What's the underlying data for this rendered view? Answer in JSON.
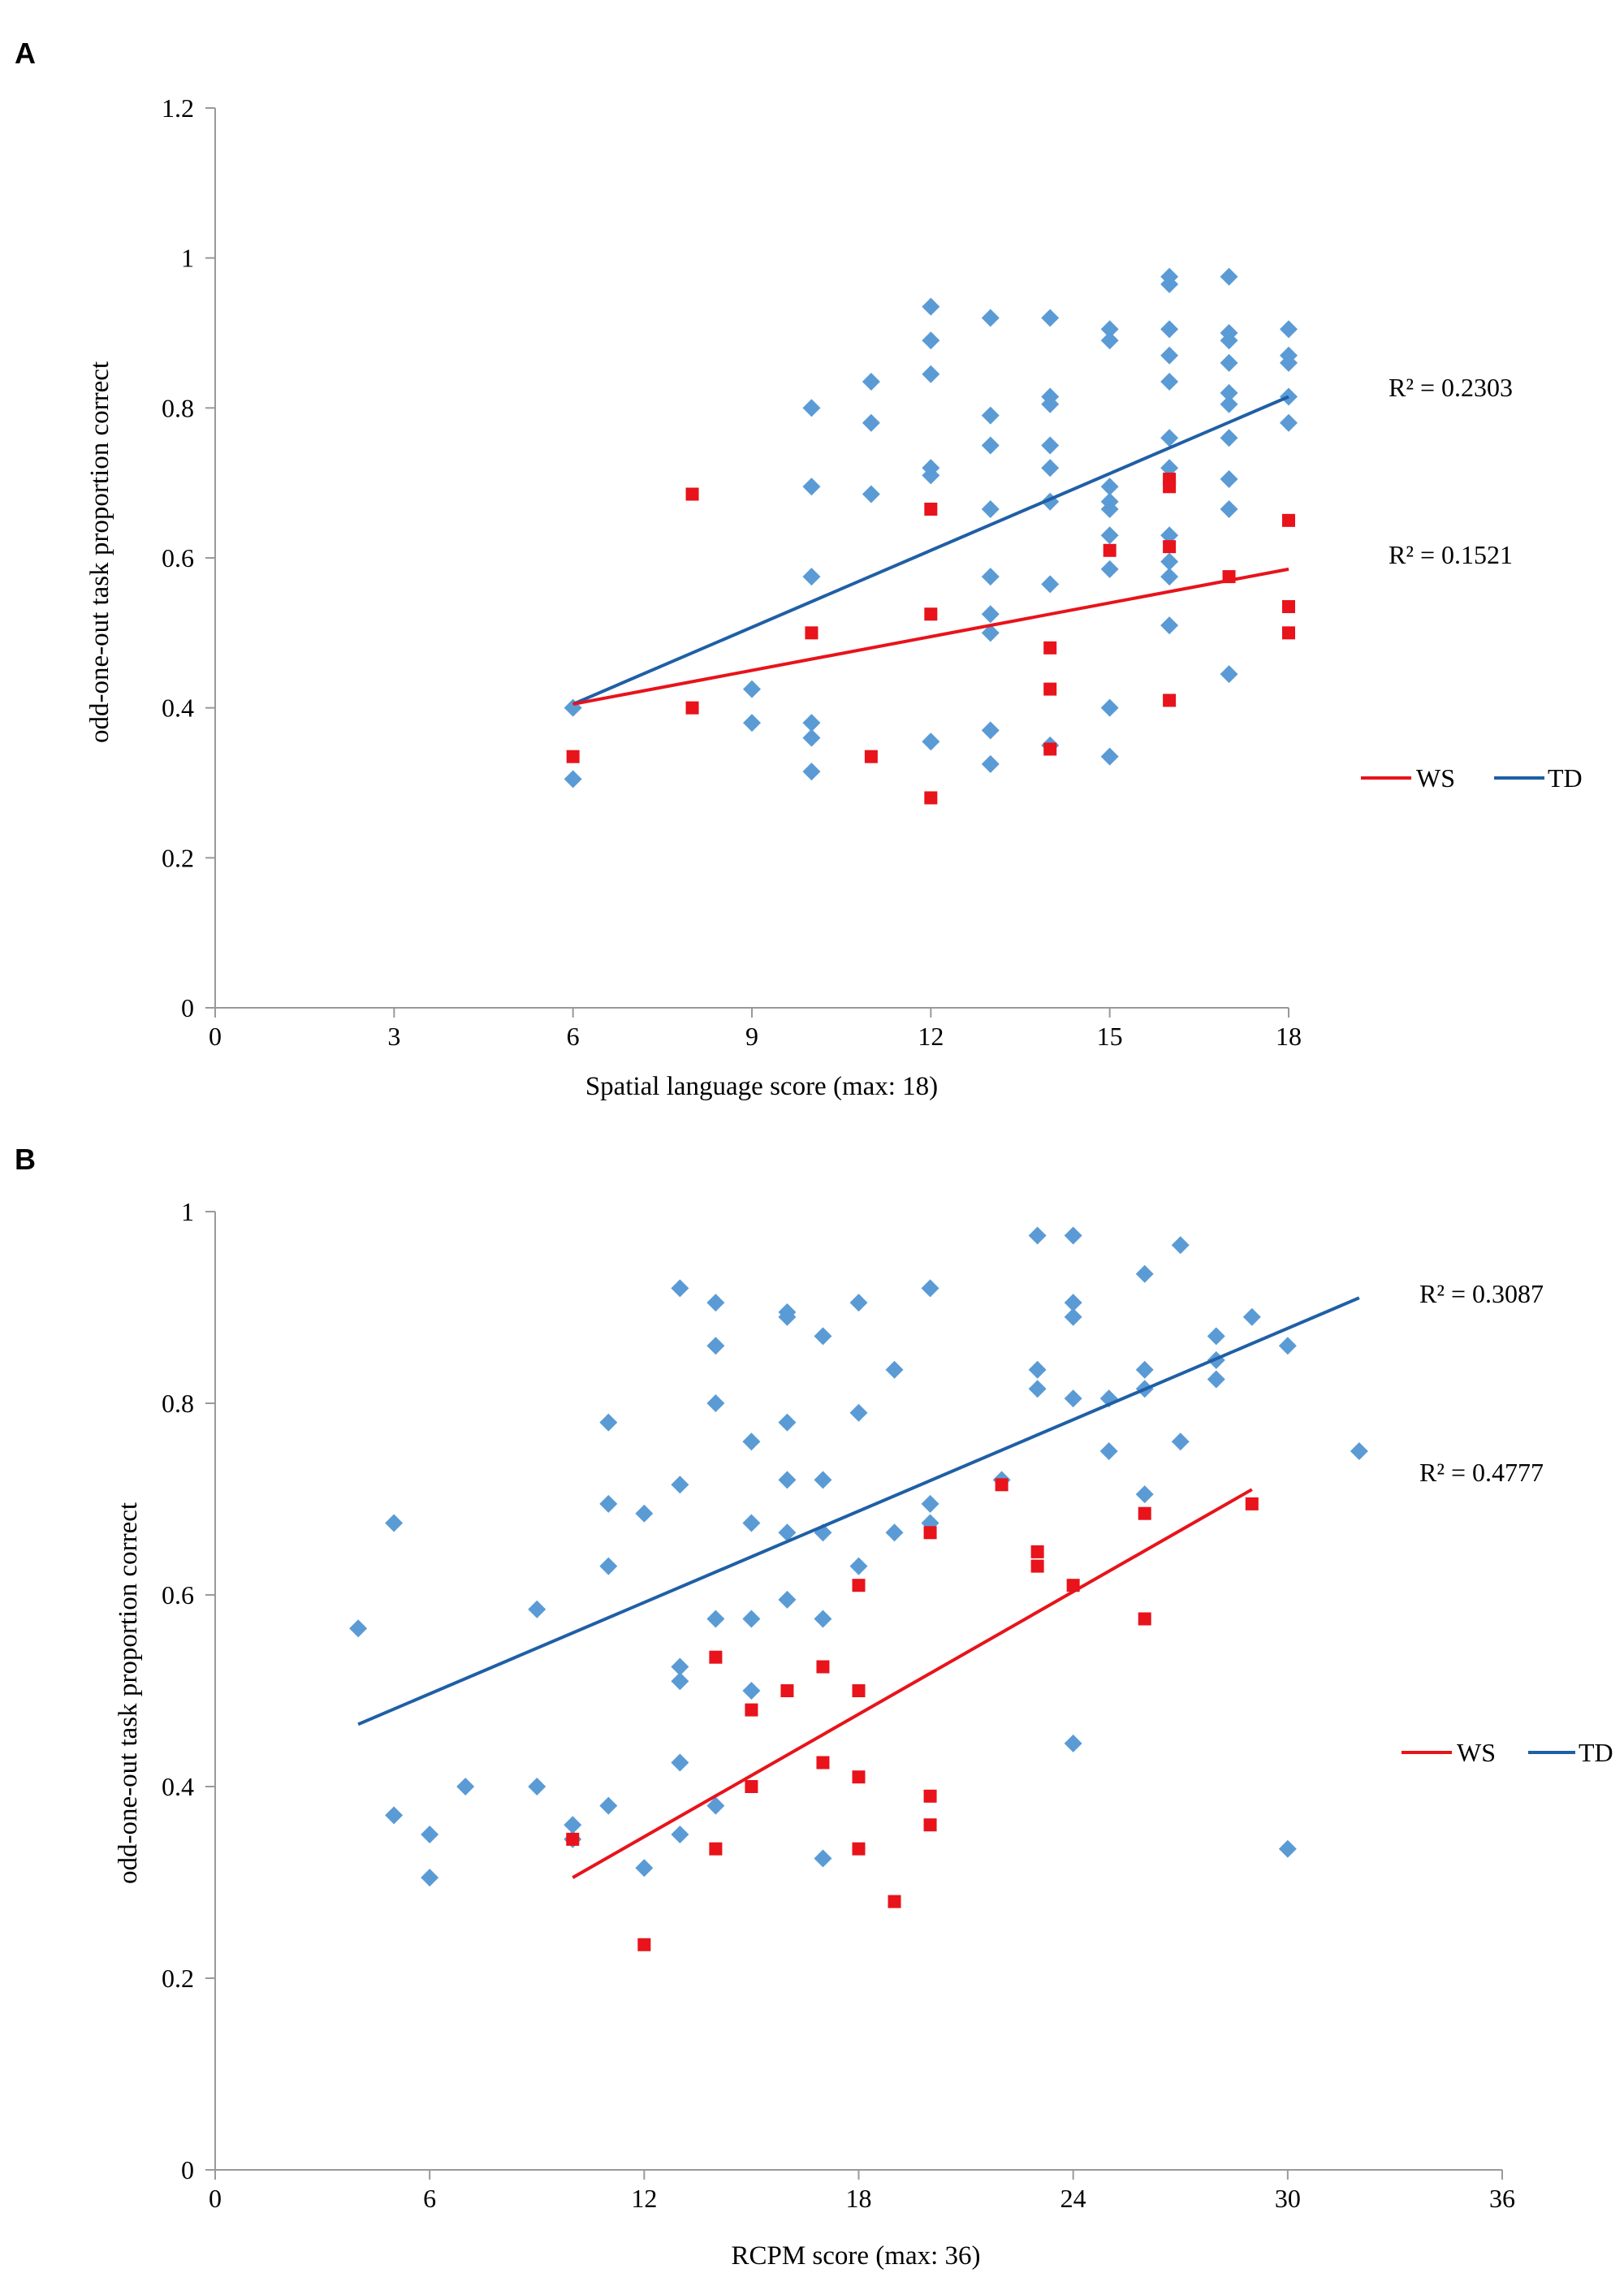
{
  "chart_data": [
    {
      "panel": "A",
      "type": "scatter",
      "xlabel": "Spatial language score (max: 18)",
      "ylabel": "odd-one-out task proportion correct",
      "xlim": [
        0,
        18
      ],
      "ylim": [
        0,
        1.2
      ],
      "xticks": [
        0,
        3,
        6,
        9,
        12,
        15,
        18
      ],
      "yticks": [
        0,
        0.2,
        0.4,
        0.6,
        0.8,
        1,
        1.2
      ],
      "xtick_labels": [
        "0",
        "3",
        "6",
        "9",
        "12",
        "15",
        "18"
      ],
      "ytick_labels": [
        "0",
        "0.2",
        "0.4",
        "0.6",
        "0.8",
        "1",
        "1.2"
      ],
      "legend": [
        {
          "label": "WS",
          "color": "#e8131b"
        },
        {
          "label": "TD",
          "color": "#1f5fa6"
        }
      ],
      "series": [
        {
          "name": "TD",
          "marker": "diamond",
          "color": "#5b9bd5",
          "points": [
            [
              6,
              0.4
            ],
            [
              6,
              0.305
            ],
            [
              9,
              0.425
            ],
            [
              9,
              0.38
            ],
            [
              10,
              0.8
            ],
            [
              10,
              0.695
            ],
            [
              10,
              0.575
            ],
            [
              10,
              0.38
            ],
            [
              10,
              0.36
            ],
            [
              10,
              0.315
            ],
            [
              11,
              0.835
            ],
            [
              11,
              0.78
            ],
            [
              11,
              0.685
            ],
            [
              12,
              0.935
            ],
            [
              12,
              0.89
            ],
            [
              12,
              0.845
            ],
            [
              12,
              0.72
            ],
            [
              12,
              0.71
            ],
            [
              12,
              0.355
            ],
            [
              13,
              0.92
            ],
            [
              13,
              0.79
            ],
            [
              13,
              0.75
            ],
            [
              13,
              0.665
            ],
            [
              13,
              0.575
            ],
            [
              13,
              0.525
            ],
            [
              13,
              0.5
            ],
            [
              13,
              0.37
            ],
            [
              13,
              0.325
            ],
            [
              14,
              0.92
            ],
            [
              14,
              0.815
            ],
            [
              14,
              0.805
            ],
            [
              14,
              0.75
            ],
            [
              14,
              0.72
            ],
            [
              14,
              0.675
            ],
            [
              14,
              0.565
            ],
            [
              14,
              0.35
            ],
            [
              15,
              0.905
            ],
            [
              15,
              0.89
            ],
            [
              15,
              0.695
            ],
            [
              15,
              0.675
            ],
            [
              15,
              0.665
            ],
            [
              15,
              0.63
            ],
            [
              15,
              0.585
            ],
            [
              15,
              0.4
            ],
            [
              15,
              0.335
            ],
            [
              16,
              0.975
            ],
            [
              16,
              0.965
            ],
            [
              16,
              0.905
            ],
            [
              16,
              0.87
            ],
            [
              16,
              0.835
            ],
            [
              16,
              0.76
            ],
            [
              16,
              0.72
            ],
            [
              16,
              0.63
            ],
            [
              16,
              0.595
            ],
            [
              16,
              0.575
            ],
            [
              16,
              0.51
            ],
            [
              17,
              0.975
            ],
            [
              17,
              0.9
            ],
            [
              17,
              0.89
            ],
            [
              17,
              0.86
            ],
            [
              17,
              0.82
            ],
            [
              17,
              0.805
            ],
            [
              17,
              0.76
            ],
            [
              17,
              0.705
            ],
            [
              17,
              0.665
            ],
            [
              17,
              0.445
            ],
            [
              18,
              0.905
            ],
            [
              18,
              0.87
            ],
            [
              18,
              0.86
            ],
            [
              18,
              0.815
            ],
            [
              18,
              0.78
            ]
          ],
          "trendline": [
            [
              6,
              0.405
            ],
            [
              18,
              0.815
            ]
          ],
          "r2_label": "R² = 0.2303"
        },
        {
          "name": "WS",
          "marker": "square",
          "color": "#e8131b",
          "points": [
            [
              6,
              0.335
            ],
            [
              8,
              0.685
            ],
            [
              8,
              0.4
            ],
            [
              10,
              0.5
            ],
            [
              11,
              0.335
            ],
            [
              12,
              0.665
            ],
            [
              12,
              0.525
            ],
            [
              12,
              0.28
            ],
            [
              14,
              0.48
            ],
            [
              14,
              0.425
            ],
            [
              14,
              0.345
            ],
            [
              15,
              0.61
            ],
            [
              16,
              0.705
            ],
            [
              16,
              0.695
            ],
            [
              16,
              0.615
            ],
            [
              16,
              0.41
            ],
            [
              17,
              0.575
            ],
            [
              18,
              0.65
            ],
            [
              18,
              0.535
            ],
            [
              18,
              0.5
            ]
          ],
          "trendline": [
            [
              6,
              0.405
            ],
            [
              18,
              0.585
            ]
          ],
          "r2_label": "R² = 0.1521"
        }
      ]
    },
    {
      "panel": "B",
      "type": "scatter",
      "xlabel": "RCPM score (max: 36)",
      "ylabel": "odd-one-out task proportion correct",
      "xlim": [
        0,
        36
      ],
      "ylim": [
        0,
        1
      ],
      "xticks": [
        0,
        6,
        12,
        18,
        24,
        30,
        36
      ],
      "yticks": [
        0,
        0.2,
        0.4,
        0.6,
        0.8,
        1
      ],
      "xtick_labels": [
        "0",
        "6",
        "12",
        "18",
        "24",
        "30",
        "36"
      ],
      "ytick_labels": [
        "0",
        "0.2",
        "0.4",
        "0.6",
        "0.8",
        "1"
      ],
      "legend": [
        {
          "label": "WS",
          "color": "#e8131b"
        },
        {
          "label": "TD",
          "color": "#1f5fa6"
        }
      ],
      "series": [
        {
          "name": "TD",
          "marker": "diamond",
          "color": "#5b9bd5",
          "points": [
            [
              4,
              0.565
            ],
            [
              5,
              0.675
            ],
            [
              5,
              0.37
            ],
            [
              6,
              0.35
            ],
            [
              6,
              0.305
            ],
            [
              7,
              0.4
            ],
            [
              9,
              0.585
            ],
            [
              9,
              0.4
            ],
            [
              10,
              0.36
            ],
            [
              10,
              0.345
            ],
            [
              11,
              0.78
            ],
            [
              11,
              0.695
            ],
            [
              11,
              0.63
            ],
            [
              11,
              0.38
            ],
            [
              12,
              0.685
            ],
            [
              12,
              0.315
            ],
            [
              13,
              0.92
            ],
            [
              13,
              0.715
            ],
            [
              13,
              0.525
            ],
            [
              13,
              0.51
            ],
            [
              13,
              0.425
            ],
            [
              13,
              0.35
            ],
            [
              14,
              0.905
            ],
            [
              14,
              0.86
            ],
            [
              14,
              0.8
            ],
            [
              14,
              0.575
            ],
            [
              14,
              0.38
            ],
            [
              15,
              0.76
            ],
            [
              15,
              0.675
            ],
            [
              15,
              0.575
            ],
            [
              15,
              0.5
            ],
            [
              16,
              0.895
            ],
            [
              16,
              0.89
            ],
            [
              16,
              0.78
            ],
            [
              16,
              0.72
            ],
            [
              16,
              0.665
            ],
            [
              16,
              0.595
            ],
            [
              17,
              0.87
            ],
            [
              17,
              0.72
            ],
            [
              17,
              0.665
            ],
            [
              17,
              0.575
            ],
            [
              17,
              0.325
            ],
            [
              18,
              0.905
            ],
            [
              18,
              0.79
            ],
            [
              18,
              0.63
            ],
            [
              19,
              0.835
            ],
            [
              19,
              0.665
            ],
            [
              20,
              0.92
            ],
            [
              20,
              0.695
            ],
            [
              20,
              0.675
            ],
            [
              22,
              0.72
            ],
            [
              23,
              0.975
            ],
            [
              23,
              0.835
            ],
            [
              23,
              0.815
            ],
            [
              24,
              0.975
            ],
            [
              24,
              0.905
            ],
            [
              24,
              0.89
            ],
            [
              24,
              0.805
            ],
            [
              24,
              0.445
            ],
            [
              25,
              0.805
            ],
            [
              25,
              0.75
            ],
            [
              26,
              0.935
            ],
            [
              26,
              0.835
            ],
            [
              26,
              0.815
            ],
            [
              26,
              0.705
            ],
            [
              27,
              0.965
            ],
            [
              27,
              0.76
            ],
            [
              28,
              0.87
            ],
            [
              28,
              0.845
            ],
            [
              28,
              0.825
            ],
            [
              29,
              0.89
            ],
            [
              30,
              0.86
            ],
            [
              30,
              0.335
            ],
            [
              32,
              0.75
            ]
          ],
          "trendline": [
            [
              4,
              0.465
            ],
            [
              32,
              0.91
            ]
          ],
          "r2_label": "R² = 0.3087"
        },
        {
          "name": "WS",
          "marker": "square",
          "color": "#e8131b",
          "points": [
            [
              10,
              0.345
            ],
            [
              12,
              0.235
            ],
            [
              14,
              0.535
            ],
            [
              14,
              0.335
            ],
            [
              15,
              0.48
            ],
            [
              15,
              0.4
            ],
            [
              16,
              0.5
            ],
            [
              17,
              0.525
            ],
            [
              17,
              0.425
            ],
            [
              18,
              0.61
            ],
            [
              18,
              0.5
            ],
            [
              18,
              0.41
            ],
            [
              18,
              0.335
            ],
            [
              19,
              0.28
            ],
            [
              20,
              0.665
            ],
            [
              20,
              0.39
            ],
            [
              20,
              0.36
            ],
            [
              22,
              0.715
            ],
            [
              23,
              0.645
            ],
            [
              23,
              0.63
            ],
            [
              24,
              0.61
            ],
            [
              26,
              0.685
            ],
            [
              26,
              0.575
            ],
            [
              29,
              0.695
            ]
          ],
          "trendline": [
            [
              10,
              0.305
            ],
            [
              29,
              0.71
            ]
          ],
          "r2_label": "R² = 0.4777"
        }
      ]
    }
  ]
}
